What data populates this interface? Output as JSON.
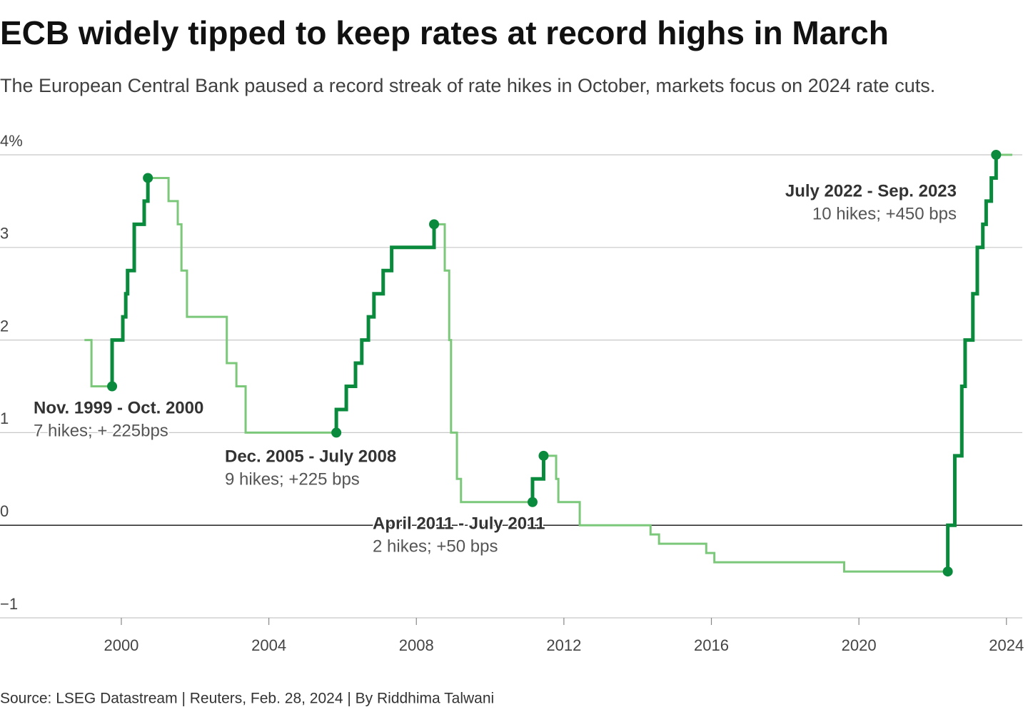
{
  "chart_data": {
    "type": "step",
    "title": "ECB widely tipped to keep rates at record highs in March",
    "subtitle": "The European Central Bank paused a record streak of rate hikes in October, markets focus on 2024 rate cuts.",
    "source": "Source: LSEG Datastream | Reuters, Feb. 28, 2024 | By Riddhima Talwani",
    "x": [
      1999.0,
      1999.19,
      1999.75,
      2000.04,
      2000.12,
      2000.17,
      2000.35,
      2000.62,
      2000.72,
      2001.28,
      2001.53,
      2001.63,
      2001.78,
      2002.86,
      2003.12,
      2003.37,
      2005.83,
      2006.1,
      2006.35,
      2006.52,
      2006.7,
      2006.85,
      2007.1,
      2007.33,
      2008.48,
      2008.77,
      2008.89,
      2008.94,
      2009.1,
      2009.21,
      2011.15,
      2011.45,
      2011.79,
      2011.85,
      2012.43,
      2014.35,
      2014.58,
      2015.86,
      2016.08,
      2019.6,
      2022.41,
      2022.6,
      2022.79,
      2022.88,
      2023.09,
      2023.21,
      2023.36,
      2023.45,
      2023.59,
      2023.72,
      2024.16
    ],
    "values": [
      2.0,
      1.5,
      2.0,
      2.25,
      2.5,
      2.75,
      3.25,
      3.5,
      3.75,
      3.5,
      3.25,
      2.75,
      2.25,
      1.75,
      1.5,
      1.0,
      1.25,
      1.5,
      1.75,
      2.0,
      2.25,
      2.5,
      2.75,
      3.0,
      3.25,
      2.75,
      2.0,
      1.0,
      0.5,
      0.25,
      0.5,
      0.75,
      0.5,
      0.25,
      0.0,
      -0.1,
      -0.2,
      -0.3,
      -0.4,
      -0.5,
      0.0,
      0.75,
      1.5,
      2.0,
      2.5,
      3.0,
      3.25,
      3.5,
      3.75,
      4.0,
      4.0
    ],
    "color": "#7cc87a",
    "highlight_color": "#0a8a3c",
    "annotations": [
      {
        "title": "Nov. 1999 - Oct. 2000",
        "text": "7 hikes; + 225bps",
        "start": 1999.75,
        "end": 2000.72
      },
      {
        "title": "Dec. 2005 - July 2008",
        "text": "9 hikes; +225 bps",
        "start": 2005.83,
        "end": 2008.48
      },
      {
        "title": "April 2011 - July 2011",
        "text": "2 hikes; +50 bps",
        "start": 2011.15,
        "end": 2011.45
      },
      {
        "title": "July 2022 - Sep. 2023",
        "text": "10 hikes; +450 bps",
        "start": 2022.41,
        "end": 2023.72
      }
    ],
    "xlim": [
      1996.71,
      2024.43
    ],
    "xticks": [
      2000,
      2004,
      2008,
      2012,
      2016,
      2020,
      2024
    ],
    "ylim": [
      -1,
      4
    ],
    "yticks": [
      {
        "value": -1,
        "label": "−1"
      },
      0,
      1,
      2,
      3,
      {
        "value": 4,
        "label": "4%"
      }
    ],
    "grid": true
  }
}
